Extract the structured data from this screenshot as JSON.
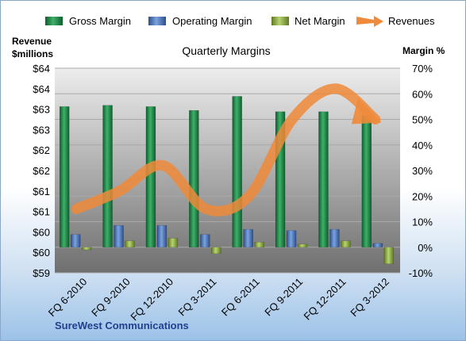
{
  "chart_data": {
    "type": "bar",
    "title": "Quarterly Margins",
    "company": "SureWest Communications",
    "left_axis_title": [
      "Revenue",
      "$millions"
    ],
    "right_axis_title": "Margin %",
    "left_tick_labels": [
      "$64",
      "$64",
      "$63",
      "$63",
      "$62",
      "$62",
      "$61",
      "$61",
      "$60",
      "$60",
      "$59"
    ],
    "right_tick_labels": [
      "70%",
      "60%",
      "50%",
      "40%",
      "30%",
      "20%",
      "10%",
      "0%",
      "-10%"
    ],
    "ylim_right": [
      -10,
      70
    ],
    "categories": [
      "FQ 6-2010",
      "FQ 9-2010",
      "FQ 12-2010",
      "FQ 3-2011",
      "FQ 6-2011",
      "FQ 9-2011",
      "FQ 12-2011",
      "FQ 3-2012"
    ],
    "series": [
      {
        "name": "Gross Margin",
        "kind": "bar",
        "color": "#1f8a4c",
        "values": [
          55,
          55.5,
          55,
          53.5,
          59,
          53,
          53,
          51.5
        ]
      },
      {
        "name": "Operating Margin",
        "kind": "bar",
        "color": "#4f7fc4",
        "values": [
          5,
          8.5,
          8.5,
          5,
          7,
          6.5,
          7,
          1.5
        ]
      },
      {
        "name": "Net Margin",
        "kind": "bar",
        "color": "#8fb24a",
        "values": [
          -1,
          2.5,
          3.5,
          -2.5,
          2,
          1.2,
          2.5,
          -6.5
        ]
      },
      {
        "name": "Revenues",
        "kind": "line",
        "color": "#ef8a3a",
        "values_margin_scale": [
          15,
          22,
          32,
          15,
          20,
          50,
          62,
          50
        ]
      }
    ],
    "legend_position": "top",
    "grid": "horizontal"
  }
}
